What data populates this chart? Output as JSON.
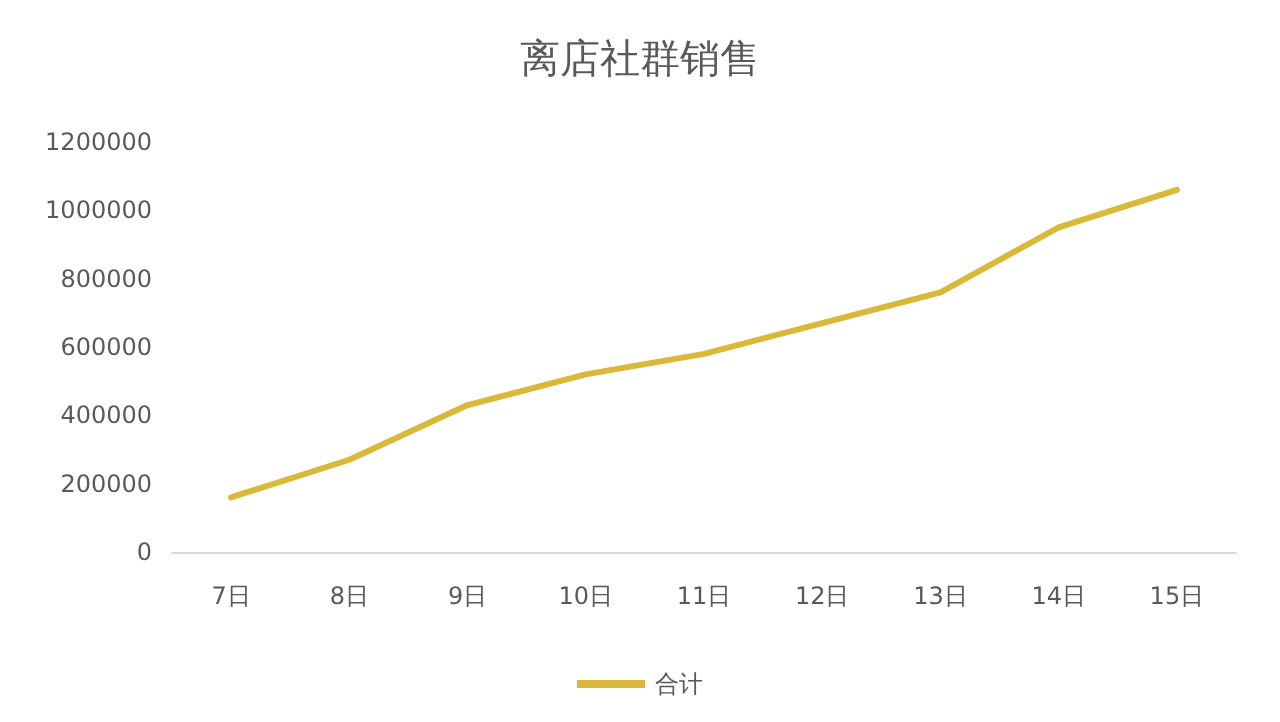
{
  "chart_data": {
    "type": "line",
    "title": "离店社群销售",
    "categories": [
      "7日",
      "8日",
      "9日",
      "10日",
      "11日",
      "12日",
      "13日",
      "14日",
      "15日"
    ],
    "series": [
      {
        "name": "合计",
        "color": "#d9b83a",
        "values": [
          160000,
          270000,
          430000,
          520000,
          580000,
          670000,
          760000,
          950000,
          1060000
        ]
      }
    ],
    "ylim": [
      0,
      1200000
    ],
    "yticks": [
      0,
      200000,
      400000,
      600000,
      800000,
      1000000,
      1200000
    ],
    "grid": false,
    "legend": "bottom",
    "marker": "none",
    "line_style": "solid"
  }
}
